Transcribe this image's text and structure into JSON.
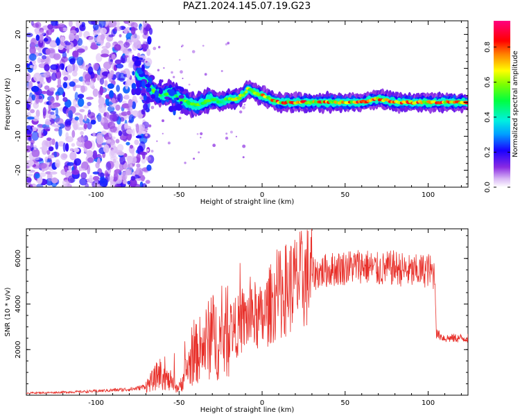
{
  "figure": {
    "title": "PAZ1.2024.145.07.19.G23"
  },
  "chart_data": [
    {
      "type": "heatmap",
      "title": "PAZ1.2024.145.07.19.G23",
      "xlabel": "Height of straight line (km)",
      "ylabel": "Frequency (Hz)",
      "xlim": [
        -142,
        124
      ],
      "ylim": [
        -25,
        24
      ],
      "xticks": [
        -100,
        -50,
        0,
        50,
        100
      ],
      "xtick_labels": [
        "-100",
        "-50",
        "0",
        "50",
        "100"
      ],
      "yticks": [
        -20,
        -10,
        0,
        10,
        20
      ],
      "ytick_labels": [
        "-20",
        "-10",
        "0",
        "10",
        "20"
      ],
      "colorbar": {
        "label": "Normalized spectral amplitude",
        "range": [
          0,
          0.95
        ],
        "ticks": [
          0.0,
          0.2,
          0.4,
          0.6,
          0.8
        ],
        "tick_labels": [
          "0.0",
          "0.2",
          "0.4",
          "0.6",
          "0.8"
        ],
        "colormap": "gist_rainbow_r (white-purple-blue-cyan-green-yellow-red-magenta)"
      },
      "ridge": {
        "description": "dominant frequency vs height",
        "x": [
          -75,
          -70,
          -65,
          -60,
          -55,
          -50,
          -45,
          -40,
          -35,
          -30,
          -25,
          -20,
          -15,
          -10,
          -8,
          -5,
          0,
          5,
          10,
          20,
          30,
          40,
          50,
          60,
          70,
          80,
          90,
          100,
          110,
          124
        ],
        "y": [
          8,
          6,
          3,
          2,
          3,
          1,
          0,
          -1,
          0,
          1,
          0,
          1,
          1,
          3,
          4,
          3,
          2,
          1,
          0,
          0,
          0,
          0,
          0,
          0,
          1,
          0,
          0,
          0,
          0,
          0
        ],
        "peak_amplitude": 0.9
      },
      "noise_region_x": [
        -142,
        -73
      ],
      "grid": false
    },
    {
      "type": "line",
      "xlabel": "Height of straight line (km)",
      "ylabel": "SNR (10 * v/v)",
      "xlim": [
        -142,
        124
      ],
      "ylim": [
        0,
        7300
      ],
      "xticks": [
        -100,
        -50,
        0,
        50,
        100
      ],
      "xtick_labels": [
        "-100",
        "-50",
        "0",
        "50",
        "100"
      ],
      "yticks": [
        2000,
        4000,
        6000
      ],
      "ytick_labels": [
        "2000",
        "4000",
        "6000"
      ],
      "color": "#e8302a",
      "x": [
        -142,
        -130,
        -120,
        -110,
        -100,
        -90,
        -80,
        -75,
        -70,
        -65,
        -62,
        -60,
        -55,
        -50,
        -45,
        -40,
        -35,
        -30,
        -25,
        -20,
        -15,
        -10,
        -5,
        0,
        5,
        10,
        15,
        20,
        25,
        30,
        40,
        50,
        60,
        70,
        80,
        90,
        100,
        104,
        105,
        110,
        124
      ],
      "y": [
        100,
        110,
        130,
        150,
        180,
        220,
        260,
        300,
        400,
        700,
        1000,
        900,
        500,
        300,
        1200,
        1800,
        2200,
        2600,
        2400,
        2900,
        3000,
        3300,
        3500,
        3300,
        4000,
        4400,
        4700,
        4900,
        5100,
        5300,
        5500,
        5600,
        5700,
        5500,
        5600,
        5400,
        5500,
        5300,
        2700,
        2500,
        2500
      ],
      "grid": false
    }
  ]
}
